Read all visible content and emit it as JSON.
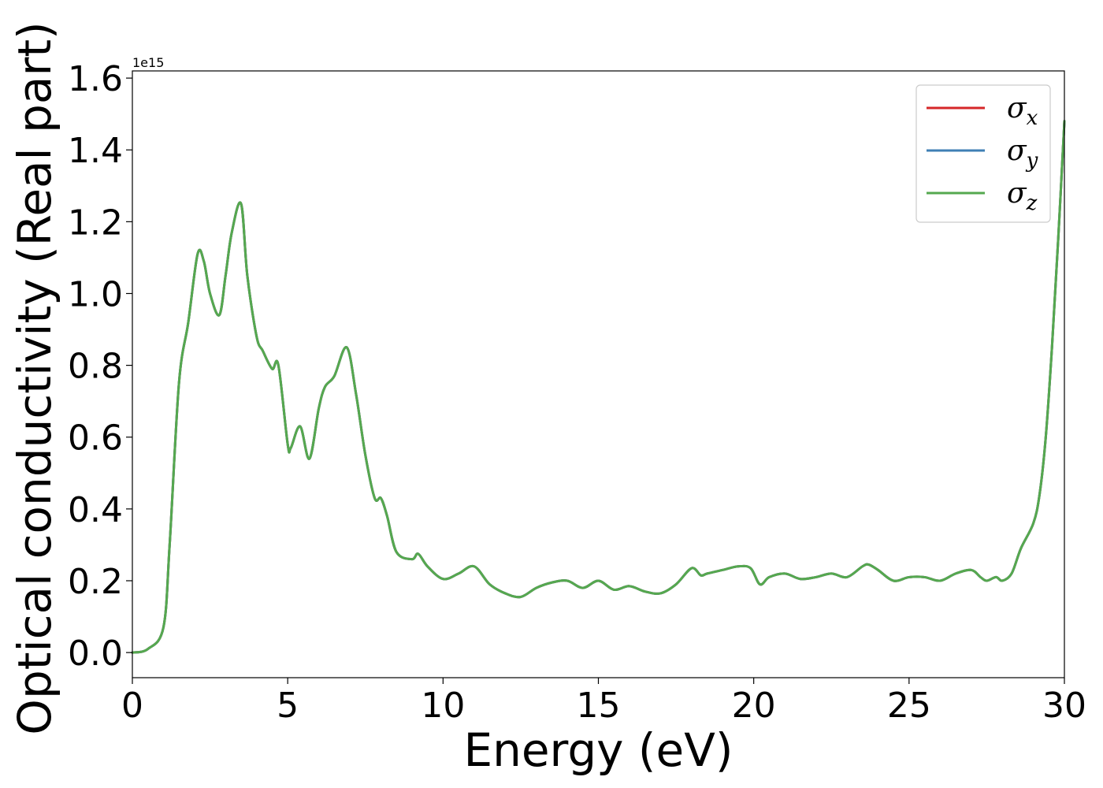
{
  "chart_data": {
    "type": "line",
    "xlabel": "Energy (eV)",
    "ylabel": "Optical conductivity (Real part)",
    "y_offset_text": "1e15",
    "y_scale_multiplier": 1000000000000000.0,
    "xlim": [
      0,
      30
    ],
    "ylim": [
      -0.07,
      1.62
    ],
    "xticks": [
      0,
      5,
      10,
      15,
      20,
      25,
      30
    ],
    "xtick_labels": [
      "0",
      "5",
      "10",
      "15",
      "20",
      "25",
      "30"
    ],
    "yticks": [
      0.0,
      0.2,
      0.4,
      0.6,
      0.8,
      1.0,
      1.2,
      1.4,
      1.6
    ],
    "ytick_labels": [
      "0.0",
      "0.2",
      "0.4",
      "0.6",
      "0.8",
      "1.0",
      "1.2",
      "1.4",
      "1.6"
    ],
    "grid": false,
    "legend_position": "top-right",
    "x": [
      0,
      0.5,
      1.0,
      1.2,
      1.5,
      1.8,
      2.1,
      2.3,
      2.5,
      2.8,
      3.0,
      3.2,
      3.5,
      3.7,
      4.0,
      4.2,
      4.5,
      4.7,
      5.0,
      5.1,
      5.4,
      5.7,
      6.0,
      6.2,
      6.5,
      6.9,
      7.2,
      7.5,
      7.8,
      8.0,
      8.2,
      8.5,
      9.0,
      9.2,
      9.5,
      10.0,
      10.5,
      11.0,
      11.5,
      12.0,
      12.5,
      13.0,
      13.5,
      14.0,
      14.5,
      15.0,
      15.5,
      16.0,
      16.5,
      17.0,
      17.5,
      18.0,
      18.3,
      18.5,
      19.0,
      19.5,
      19.9,
      20.2,
      20.5,
      21.0,
      21.5,
      22.0,
      22.5,
      23.0,
      23.5,
      23.7,
      24.0,
      24.5,
      25.0,
      25.5,
      26.0,
      26.5,
      27.0,
      27.3,
      27.5,
      27.8,
      28.0,
      28.3,
      28.6,
      29.0,
      29.2,
      29.4,
      29.6,
      29.8,
      30.0
    ],
    "series": [
      {
        "name": "σx",
        "color": "#d62728",
        "values": [
          0.0,
          0.01,
          0.07,
          0.3,
          0.75,
          0.92,
          1.11,
          1.09,
          1.0,
          0.94,
          1.05,
          1.17,
          1.25,
          1.05,
          0.88,
          0.84,
          0.79,
          0.8,
          0.58,
          0.57,
          0.63,
          0.54,
          0.68,
          0.74,
          0.77,
          0.85,
          0.72,
          0.55,
          0.43,
          0.43,
          0.38,
          0.28,
          0.26,
          0.275,
          0.24,
          0.205,
          0.22,
          0.24,
          0.19,
          0.165,
          0.155,
          0.18,
          0.195,
          0.2,
          0.18,
          0.2,
          0.175,
          0.185,
          0.17,
          0.165,
          0.19,
          0.235,
          0.215,
          0.22,
          0.23,
          0.24,
          0.235,
          0.19,
          0.21,
          0.22,
          0.205,
          0.21,
          0.22,
          0.21,
          0.24,
          0.245,
          0.23,
          0.2,
          0.21,
          0.21,
          0.2,
          0.22,
          0.23,
          0.21,
          0.2,
          0.21,
          0.2,
          0.22,
          0.29,
          0.36,
          0.44,
          0.6,
          0.85,
          1.15,
          1.48
        ]
      },
      {
        "name": "σy",
        "color": "#3f7fb5",
        "values": [
          0.0,
          0.01,
          0.07,
          0.3,
          0.75,
          0.92,
          1.11,
          1.09,
          1.0,
          0.94,
          1.05,
          1.17,
          1.25,
          1.05,
          0.88,
          0.84,
          0.79,
          0.8,
          0.58,
          0.57,
          0.63,
          0.54,
          0.68,
          0.74,
          0.77,
          0.85,
          0.72,
          0.55,
          0.43,
          0.43,
          0.38,
          0.28,
          0.26,
          0.275,
          0.24,
          0.205,
          0.22,
          0.24,
          0.19,
          0.165,
          0.155,
          0.18,
          0.195,
          0.2,
          0.18,
          0.2,
          0.175,
          0.185,
          0.17,
          0.165,
          0.19,
          0.235,
          0.215,
          0.22,
          0.23,
          0.24,
          0.235,
          0.19,
          0.21,
          0.22,
          0.205,
          0.21,
          0.22,
          0.21,
          0.24,
          0.245,
          0.23,
          0.2,
          0.21,
          0.21,
          0.2,
          0.22,
          0.23,
          0.21,
          0.2,
          0.21,
          0.2,
          0.22,
          0.29,
          0.36,
          0.44,
          0.6,
          0.85,
          1.15,
          1.48
        ]
      },
      {
        "name": "σz",
        "color": "#55a84f",
        "values": [
          0.0,
          0.01,
          0.07,
          0.3,
          0.75,
          0.92,
          1.11,
          1.09,
          1.0,
          0.94,
          1.05,
          1.17,
          1.25,
          1.05,
          0.88,
          0.84,
          0.79,
          0.8,
          0.58,
          0.57,
          0.63,
          0.54,
          0.68,
          0.74,
          0.77,
          0.85,
          0.72,
          0.55,
          0.43,
          0.43,
          0.38,
          0.28,
          0.26,
          0.275,
          0.24,
          0.205,
          0.22,
          0.24,
          0.19,
          0.165,
          0.155,
          0.18,
          0.195,
          0.2,
          0.18,
          0.2,
          0.175,
          0.185,
          0.17,
          0.165,
          0.19,
          0.235,
          0.215,
          0.22,
          0.23,
          0.24,
          0.235,
          0.19,
          0.21,
          0.22,
          0.205,
          0.21,
          0.22,
          0.21,
          0.24,
          0.245,
          0.23,
          0.2,
          0.21,
          0.21,
          0.2,
          0.22,
          0.23,
          0.21,
          0.2,
          0.21,
          0.2,
          0.22,
          0.29,
          0.36,
          0.44,
          0.6,
          0.85,
          1.15,
          1.48
        ]
      }
    ],
    "legend": [
      {
        "symbol": "σ",
        "subscript": "x"
      },
      {
        "symbol": "σ",
        "subscript": "y"
      },
      {
        "symbol": "σ",
        "subscript": "z"
      }
    ]
  }
}
